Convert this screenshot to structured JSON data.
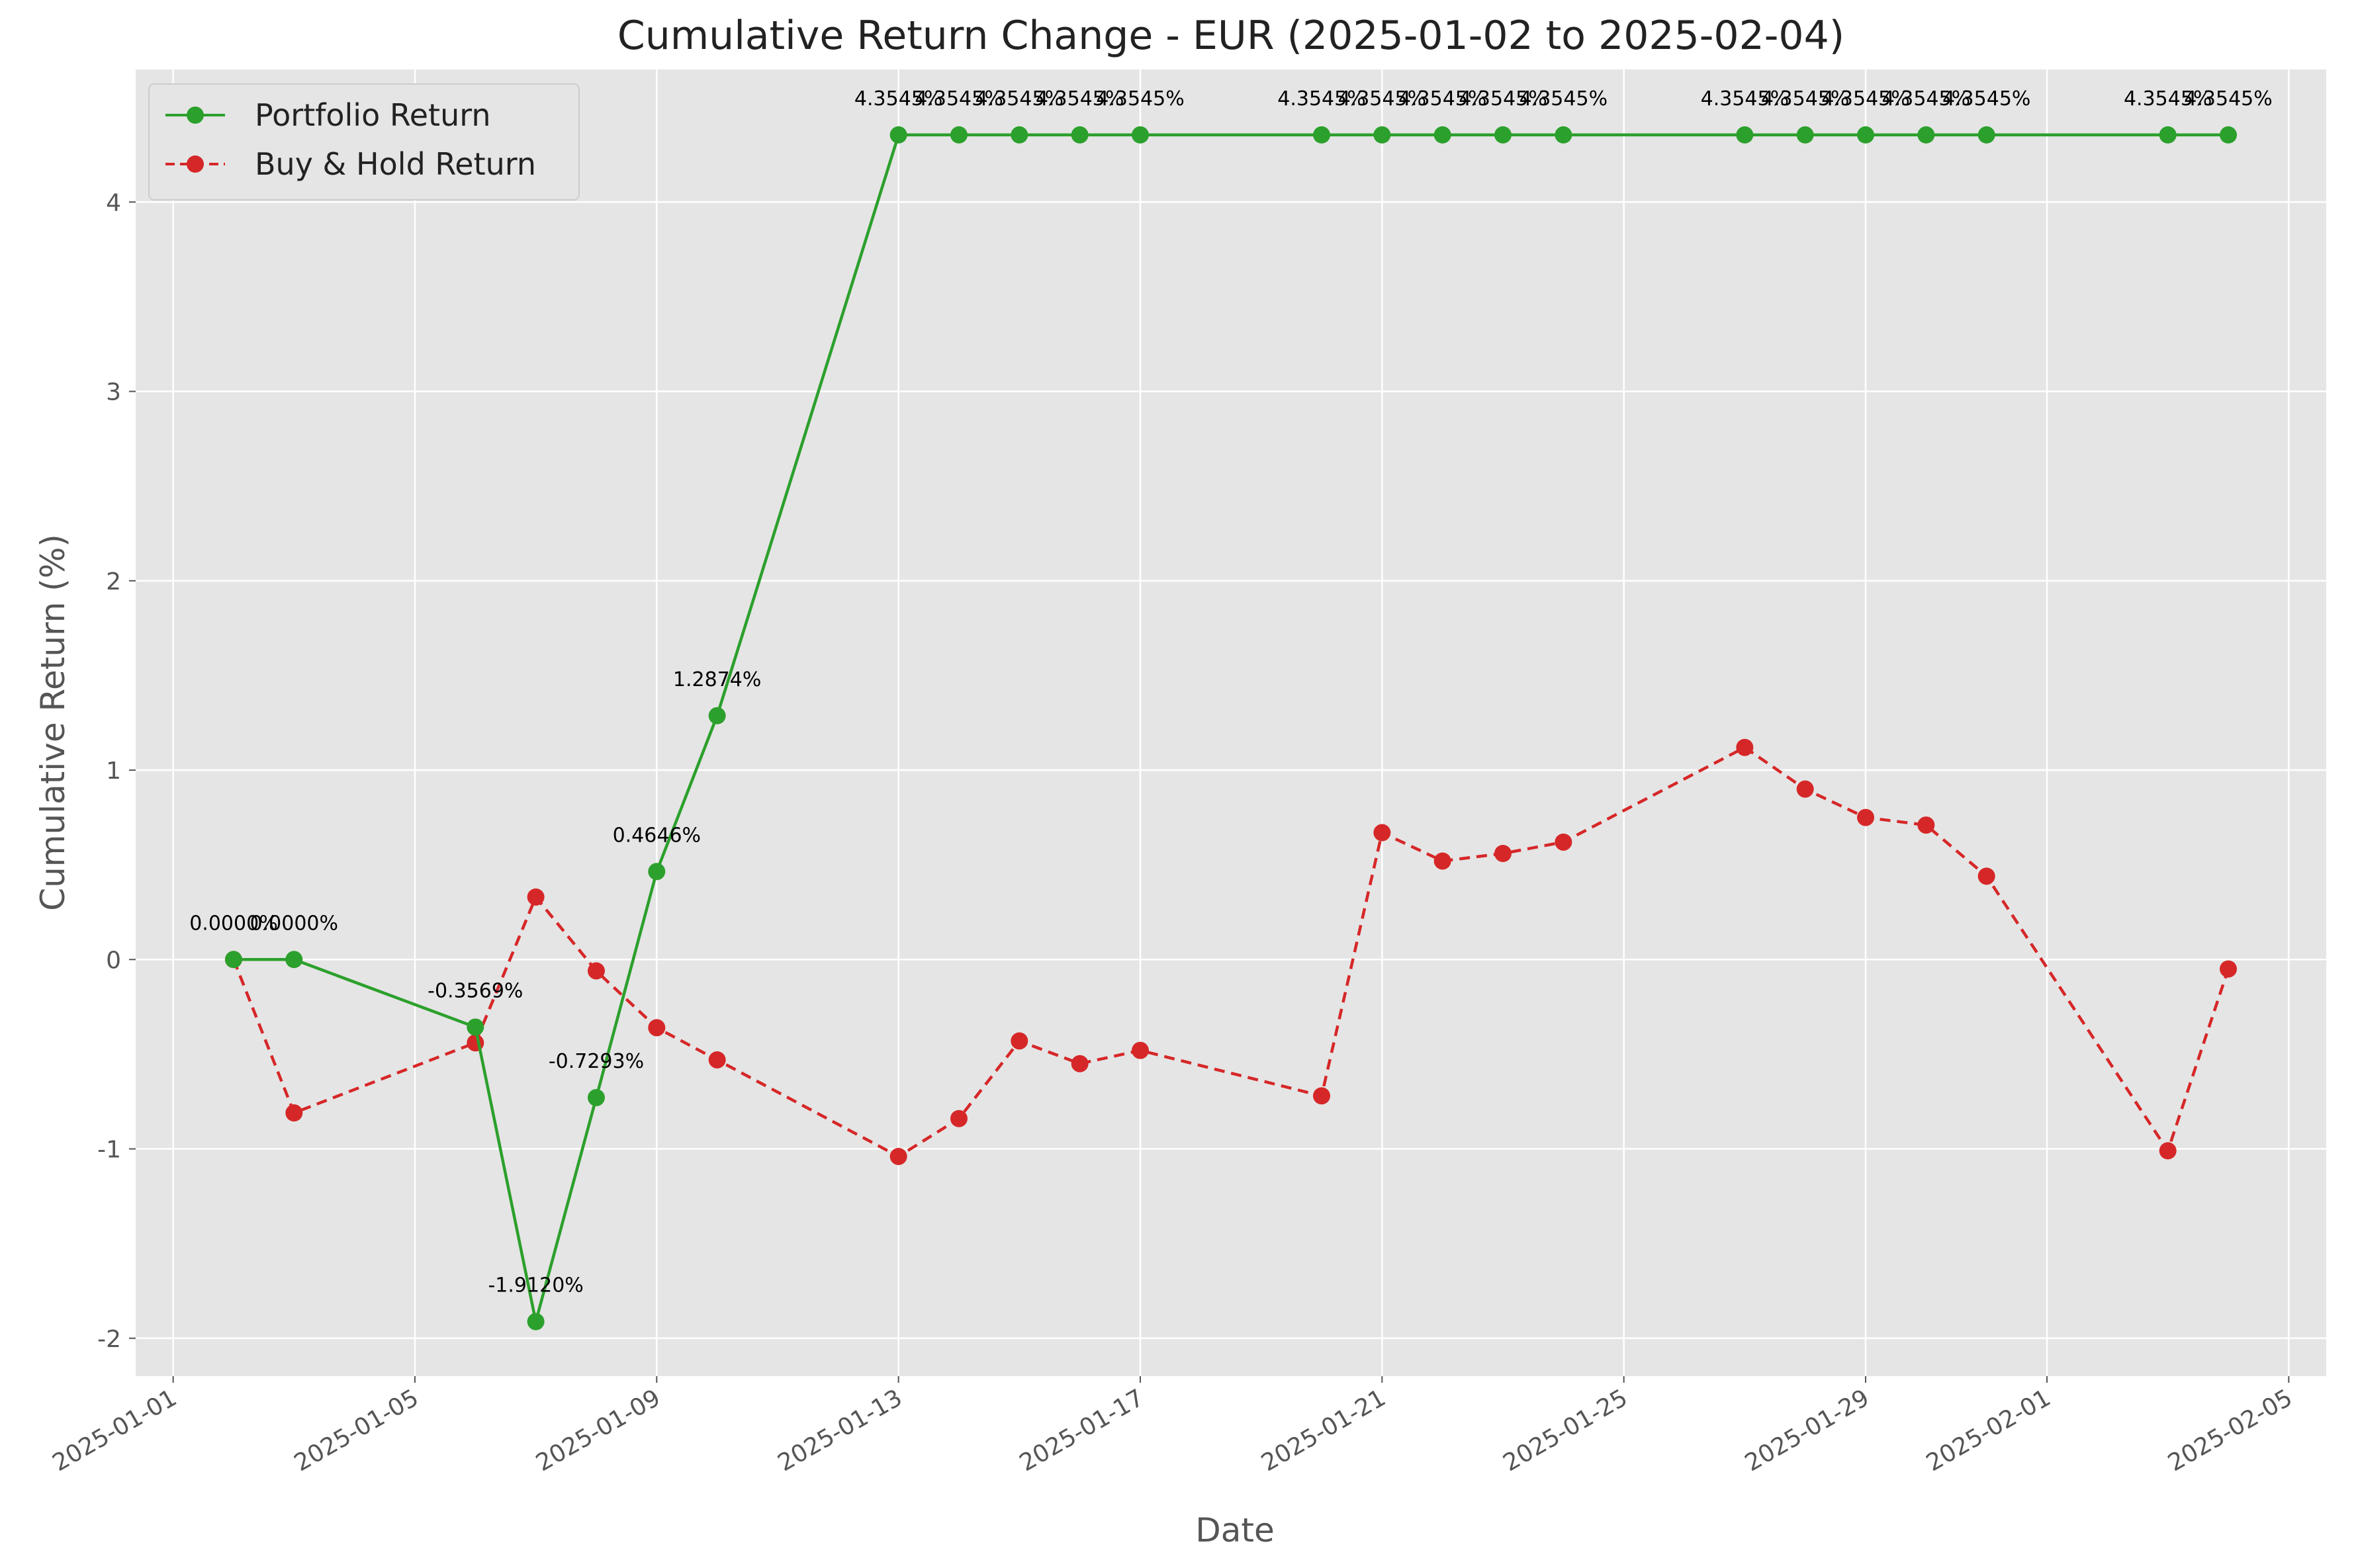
{
  "chart_data": {
    "type": "line",
    "title": "Cumulative Return Change - EUR (2025-01-02 to 2025-02-04)",
    "xlabel": "Date",
    "ylabel": "Cumulative Return (%)",
    "xlim": [
      "2025-01-01",
      "2025-02-05"
    ],
    "ylim": [
      -2.2,
      4.7
    ],
    "grid": true,
    "legend_position": "top-left",
    "x_ticks": [
      "2025-01-01",
      "2025-01-05",
      "2025-01-09",
      "2025-01-13",
      "2025-01-17",
      "2025-01-21",
      "2025-01-25",
      "2025-01-29",
      "2025-02-01",
      "2025-02-05"
    ],
    "y_ticks": [
      -2,
      -1,
      0,
      1,
      2,
      3,
      4
    ],
    "x": [
      "2025-01-02",
      "2025-01-03",
      "2025-01-06",
      "2025-01-07",
      "2025-01-08",
      "2025-01-09",
      "2025-01-10",
      "2025-01-13",
      "2025-01-14",
      "2025-01-15",
      "2025-01-16",
      "2025-01-17",
      "2025-01-20",
      "2025-01-21",
      "2025-01-22",
      "2025-01-23",
      "2025-01-24",
      "2025-01-27",
      "2025-01-28",
      "2025-01-29",
      "2025-01-30",
      "2025-01-31",
      "2025-02-03",
      "2025-02-04"
    ],
    "series": [
      {
        "name": "Portfolio Return",
        "color": "#2ca02c",
        "line_style": "solid",
        "values": [
          0.0,
          0.0,
          -0.3569,
          -1.912,
          -0.7293,
          0.4646,
          1.2874,
          4.3545,
          4.3545,
          4.3545,
          4.3545,
          4.3545,
          4.3545,
          4.3545,
          4.3545,
          4.3545,
          4.3545,
          4.3545,
          4.3545,
          4.3545,
          4.3545,
          4.3545,
          4.3545,
          4.3545
        ],
        "labels": [
          "0.0000%",
          "0.0000%",
          "-0.3569%",
          "-1.9120%",
          "-0.7293%",
          "0.4646%",
          "1.2874%",
          "4.3545%",
          "4.3545%",
          "4.3545%",
          "4.3545%",
          "4.3545%",
          "4.3545%",
          "4.3545%",
          "4.3545%",
          "4.3545%",
          "4.3545%",
          "4.3545%",
          "4.3545%",
          "4.3545%",
          "4.3545%",
          "4.3545%",
          "4.3545%",
          "4.3545%"
        ]
      },
      {
        "name": "Buy & Hold Return",
        "color": "#d62728",
        "line_style": "dashed",
        "values": [
          0.0,
          -0.81,
          -0.44,
          0.33,
          -0.06,
          -0.36,
          -0.53,
          -1.04,
          -0.84,
          -0.43,
          -0.55,
          -0.48,
          -0.72,
          0.67,
          0.52,
          0.56,
          0.62,
          1.12,
          0.9,
          0.75,
          0.71,
          0.44,
          -1.01,
          -0.05
        ]
      }
    ]
  }
}
